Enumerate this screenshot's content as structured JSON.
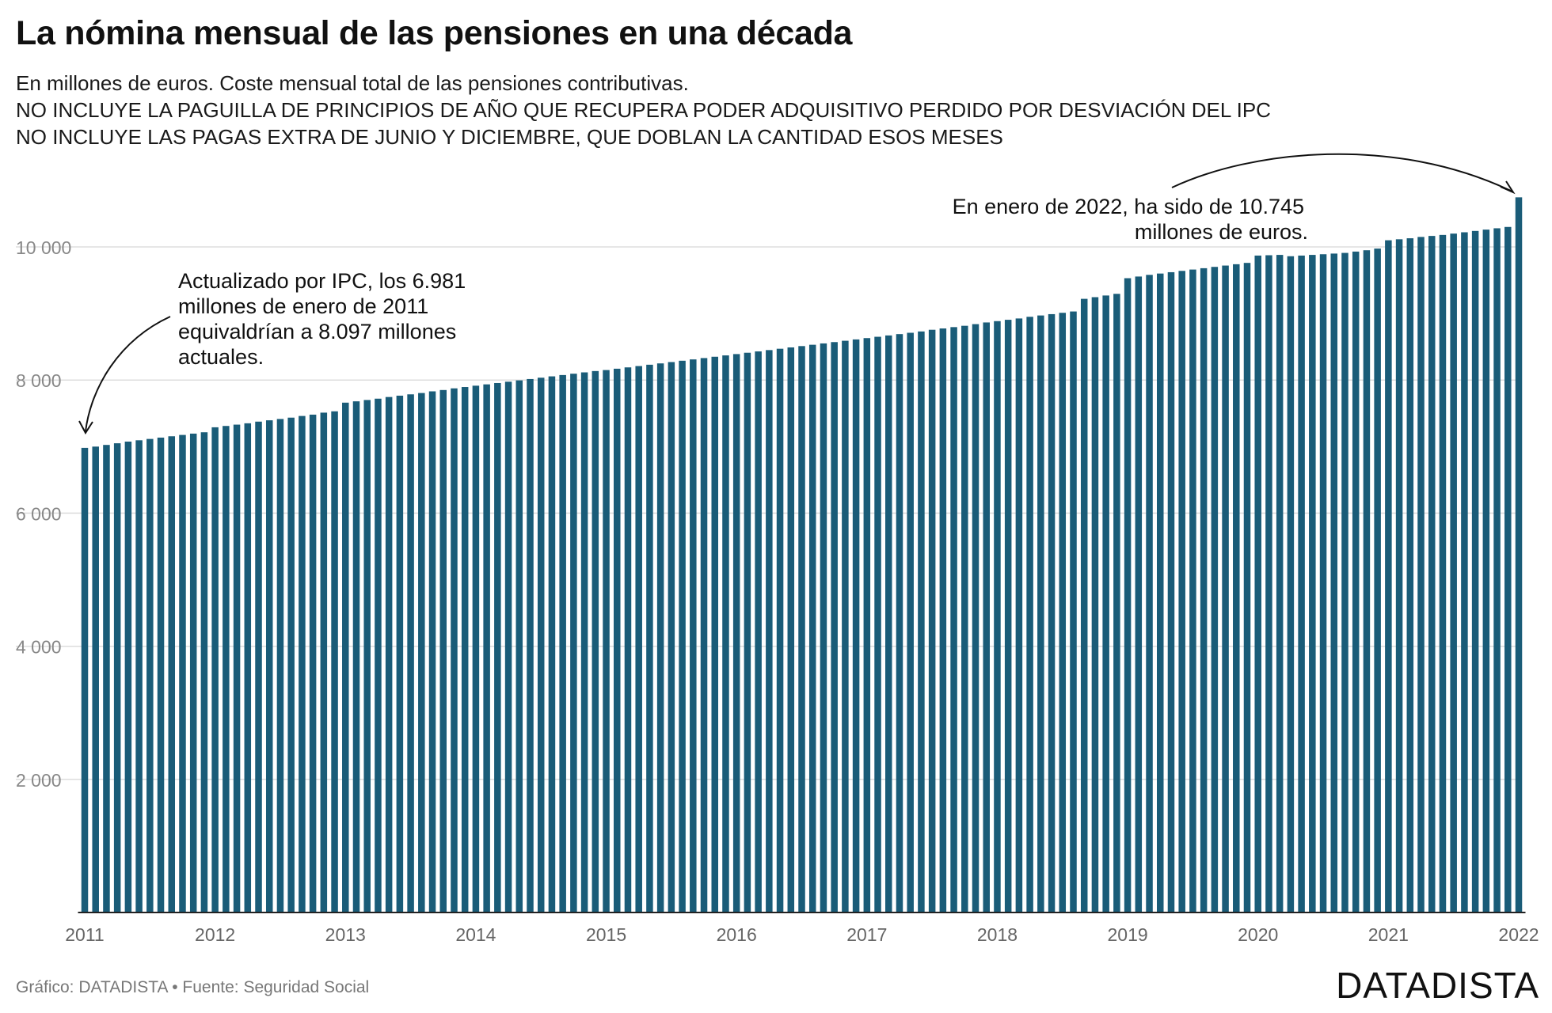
{
  "header": {
    "title": "La nómina mensual de las pensiones en una década",
    "subtitle_lines": [
      "En millones de euros. Coste mensual total de las pensiones contributivas.",
      "NO INCLUYE LA PAGUILLA DE PRINCIPIOS DE AÑO QUE RECUPERA PODER ADQUISITIVO PERDIDO POR DESVIACIÓN DEL IPC",
      "NO INCLUYE LAS PAGAS EXTRA DE JUNIO Y DICIEMBRE, QUE DOBLAN LA CANTIDAD ESOS MESES"
    ]
  },
  "footer": {
    "credit": "Gráfico: DATADISTA • Fuente: Seguridad Social",
    "brand": "DATADISTA"
  },
  "colors": {
    "bar": "#1a5c78",
    "grid": "#dddddd",
    "tick": "#888888"
  },
  "chart_data": {
    "type": "bar",
    "title": "La nómina mensual de las pensiones en una década",
    "ylim": [
      0,
      10800
    ],
    "y_ticks": [
      2000,
      4000,
      6000,
      8000,
      10000
    ],
    "y_tick_labels": [
      "2 000",
      "4 000",
      "6 000",
      "8 000",
      "10 000"
    ],
    "x_tick_labels": [
      "2011",
      "2012",
      "2013",
      "2014",
      "2015",
      "2016",
      "2017",
      "2018",
      "2019",
      "2020",
      "2021",
      "2022"
    ],
    "grid": true,
    "categories": [
      "2011-01",
      "2011-02",
      "2011-03",
      "2011-04",
      "2011-05",
      "2011-06",
      "2011-07",
      "2011-08",
      "2011-09",
      "2011-10",
      "2011-11",
      "2011-12",
      "2012-01",
      "2012-02",
      "2012-03",
      "2012-04",
      "2012-05",
      "2012-06",
      "2012-07",
      "2012-08",
      "2012-09",
      "2012-10",
      "2012-11",
      "2012-12",
      "2013-01",
      "2013-02",
      "2013-03",
      "2013-04",
      "2013-05",
      "2013-06",
      "2013-07",
      "2013-08",
      "2013-09",
      "2013-10",
      "2013-11",
      "2013-12",
      "2014-01",
      "2014-02",
      "2014-03",
      "2014-04",
      "2014-05",
      "2014-06",
      "2014-07",
      "2014-08",
      "2014-09",
      "2014-10",
      "2014-11",
      "2014-12",
      "2015-01",
      "2015-02",
      "2015-03",
      "2015-04",
      "2015-05",
      "2015-06",
      "2015-07",
      "2015-08",
      "2015-09",
      "2015-10",
      "2015-11",
      "2015-12",
      "2016-01",
      "2016-02",
      "2016-03",
      "2016-04",
      "2016-05",
      "2016-06",
      "2016-07",
      "2016-08",
      "2016-09",
      "2016-10",
      "2016-11",
      "2016-12",
      "2017-01",
      "2017-02",
      "2017-03",
      "2017-04",
      "2017-05",
      "2017-06",
      "2017-07",
      "2017-08",
      "2017-09",
      "2017-10",
      "2017-11",
      "2017-12",
      "2018-01",
      "2018-02",
      "2018-03",
      "2018-04",
      "2018-05",
      "2018-06",
      "2018-07",
      "2018-08",
      "2018-09",
      "2018-10",
      "2018-11",
      "2018-12",
      "2019-01",
      "2019-02",
      "2019-03",
      "2019-04",
      "2019-05",
      "2019-06",
      "2019-07",
      "2019-08",
      "2019-09",
      "2019-10",
      "2019-11",
      "2019-12",
      "2020-01",
      "2020-02",
      "2020-03",
      "2020-04",
      "2020-05",
      "2020-06",
      "2020-07",
      "2020-08",
      "2020-09",
      "2020-10",
      "2020-11",
      "2020-12",
      "2021-01",
      "2021-02",
      "2021-03",
      "2021-04",
      "2021-05",
      "2021-06",
      "2021-07",
      "2021-08",
      "2021-09",
      "2021-10",
      "2021-11",
      "2021-12",
      "2022-01"
    ],
    "values": [
      6981,
      7000,
      7025,
      7050,
      7075,
      7095,
      7115,
      7135,
      7155,
      7175,
      7195,
      7215,
      7290,
      7310,
      7330,
      7350,
      7375,
      7395,
      7415,
      7435,
      7460,
      7480,
      7510,
      7530,
      7660,
      7680,
      7700,
      7720,
      7745,
      7765,
      7785,
      7805,
      7830,
      7850,
      7875,
      7895,
      7915,
      7935,
      7955,
      7975,
      7995,
      8015,
      8035,
      8055,
      8075,
      8095,
      8115,
      8135,
      8150,
      8170,
      8190,
      8210,
      8230,
      8250,
      8270,
      8290,
      8310,
      8330,
      8350,
      8370,
      8390,
      8410,
      8430,
      8450,
      8470,
      8490,
      8510,
      8530,
      8550,
      8570,
      8590,
      8610,
      8630,
      8650,
      8670,
      8690,
      8710,
      8730,
      8755,
      8775,
      8795,
      8815,
      8840,
      8865,
      8885,
      8905,
      8925,
      8950,
      8970,
      8990,
      9010,
      9030,
      9220,
      9245,
      9270,
      9295,
      9530,
      9555,
      9580,
      9600,
      9620,
      9640,
      9660,
      9680,
      9700,
      9720,
      9740,
      9760,
      9870,
      9875,
      9880,
      9860,
      9870,
      9880,
      9890,
      9900,
      9910,
      9930,
      9950,
      9975,
      10100,
      10115,
      10130,
      10150,
      10165,
      10180,
      10200,
      10220,
      10240,
      10260,
      10280,
      10300,
      10745
    ],
    "annotations": [
      {
        "id": "left",
        "lines": [
          "Actualizado por IPC, los 6.981",
          "millones de enero de 2011",
          "equivaldrían a 8.097 millones",
          "actuales."
        ]
      },
      {
        "id": "right",
        "lines": [
          "En enero de 2022, ha sido de 10.745",
          "millones de euros."
        ]
      }
    ]
  }
}
